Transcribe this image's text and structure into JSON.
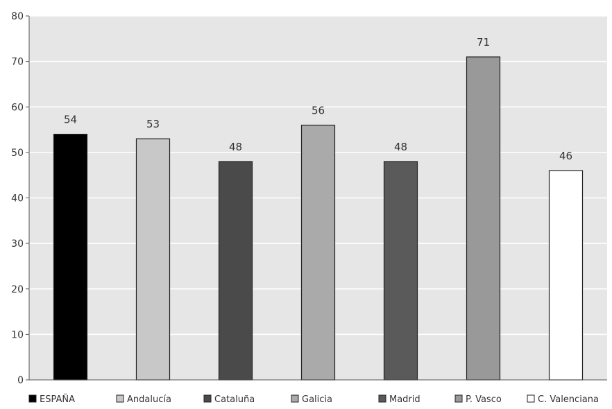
{
  "chart_data": {
    "type": "bar",
    "categories": [
      "ESPAÑA",
      "Andalucía",
      "Cataluña",
      "Galicia",
      "Madrid",
      "P. Vasco",
      "C. Valenciana"
    ],
    "values": [
      54,
      53,
      48,
      56,
      48,
      71,
      46
    ],
    "colors": [
      "#000000",
      "#c8c8c8",
      "#4a4a4a",
      "#aaaaaa",
      "#5a5a5a",
      "#999999",
      "#ffffff"
    ],
    "ylim": [
      0,
      80
    ],
    "yticks": [
      0,
      10,
      20,
      30,
      40,
      50,
      60,
      70,
      80
    ],
    "grid": true,
    "plot_background": "#e6e6e6",
    "legend_position": "bottom"
  }
}
